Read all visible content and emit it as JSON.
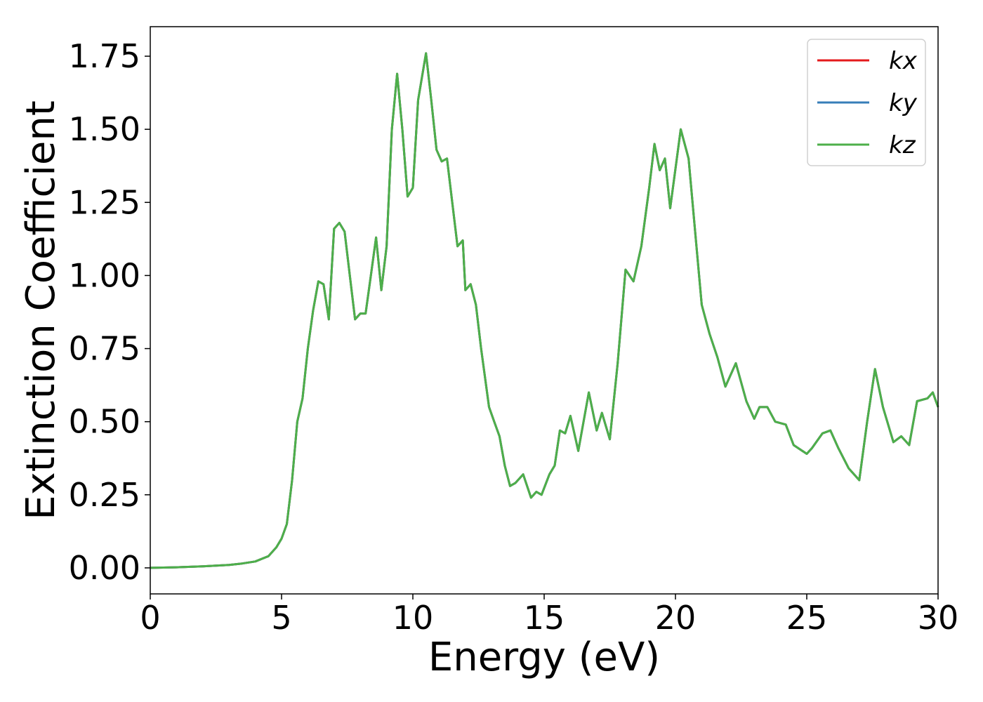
{
  "chart_data": {
    "type": "line",
    "xlabel": "Energy (eV)",
    "ylabel": "Extinction Coefficient",
    "x": [
      0,
      1,
      2,
      3,
      3.5,
      4,
      4.5,
      4.8,
      5.0,
      5.2,
      5.4,
      5.6,
      5.8,
      6.0,
      6.2,
      6.4,
      6.6,
      6.8,
      7.0,
      7.2,
      7.4,
      7.6,
      7.8,
      8.0,
      8.2,
      8.4,
      8.6,
      8.8,
      9.0,
      9.2,
      9.4,
      9.6,
      9.8,
      10.0,
      10.2,
      10.5,
      10.7,
      10.9,
      11.1,
      11.3,
      11.5,
      11.7,
      11.9,
      12.0,
      12.2,
      12.4,
      12.6,
      12.9,
      13.1,
      13.3,
      13.5,
      13.7,
      13.9,
      14.2,
      14.5,
      14.7,
      14.9,
      15.2,
      15.4,
      15.6,
      15.8,
      16.0,
      16.3,
      16.7,
      17.0,
      17.2,
      17.5,
      17.8,
      18.1,
      18.4,
      18.7,
      19.0,
      19.2,
      19.4,
      19.6,
      19.8,
      20.2,
      20.5,
      20.8,
      21.0,
      21.3,
      21.6,
      21.9,
      22.3,
      22.7,
      23.0,
      23.2,
      23.5,
      23.8,
      24.2,
      24.5,
      25.0,
      25.2,
      25.6,
      25.9,
      26.2,
      26.6,
      27.0,
      27.3,
      27.6,
      27.9,
      28.3,
      28.6,
      28.9,
      29.2,
      29.6,
      29.8,
      30.0
    ],
    "series": [
      {
        "name": "kx",
        "color": "#e41a1c",
        "values": [
          0,
          0.002,
          0.005,
          0.01,
          0.015,
          0.022,
          0.04,
          0.07,
          0.1,
          0.15,
          0.3,
          0.5,
          0.58,
          0.75,
          0.88,
          0.98,
          0.97,
          0.85,
          1.16,
          1.18,
          1.15,
          1.0,
          0.85,
          0.87,
          0.87,
          1.0,
          1.13,
          0.95,
          1.1,
          1.5,
          1.69,
          1.5,
          1.27,
          1.3,
          1.6,
          1.76,
          1.6,
          1.43,
          1.39,
          1.4,
          1.25,
          1.1,
          1.12,
          0.95,
          0.97,
          0.9,
          0.75,
          0.55,
          0.5,
          0.45,
          0.35,
          0.28,
          0.29,
          0.32,
          0.24,
          0.26,
          0.25,
          0.32,
          0.35,
          0.47,
          0.46,
          0.52,
          0.4,
          0.6,
          0.47,
          0.53,
          0.44,
          0.7,
          1.02,
          0.98,
          1.1,
          1.3,
          1.45,
          1.36,
          1.4,
          1.23,
          1.5,
          1.4,
          1.1,
          0.9,
          0.8,
          0.72,
          0.62,
          0.7,
          0.57,
          0.51,
          0.55,
          0.55,
          0.5,
          0.49,
          0.42,
          0.39,
          0.41,
          0.46,
          0.47,
          0.41,
          0.34,
          0.3,
          0.5,
          0.68,
          0.55,
          0.43,
          0.45,
          0.42,
          0.57,
          0.58,
          0.6,
          0.55
        ]
      },
      {
        "name": "ky",
        "color": "#377eb8",
        "values": [
          0,
          0.002,
          0.005,
          0.01,
          0.015,
          0.022,
          0.04,
          0.07,
          0.1,
          0.15,
          0.3,
          0.5,
          0.58,
          0.75,
          0.88,
          0.98,
          0.97,
          0.85,
          1.16,
          1.18,
          1.15,
          1.0,
          0.85,
          0.87,
          0.87,
          1.0,
          1.13,
          0.95,
          1.1,
          1.5,
          1.69,
          1.5,
          1.27,
          1.3,
          1.6,
          1.76,
          1.6,
          1.43,
          1.39,
          1.4,
          1.25,
          1.1,
          1.12,
          0.95,
          0.97,
          0.9,
          0.75,
          0.55,
          0.5,
          0.45,
          0.35,
          0.28,
          0.29,
          0.32,
          0.24,
          0.26,
          0.25,
          0.32,
          0.35,
          0.47,
          0.46,
          0.52,
          0.4,
          0.6,
          0.47,
          0.53,
          0.44,
          0.7,
          1.02,
          0.98,
          1.1,
          1.3,
          1.45,
          1.36,
          1.4,
          1.23,
          1.5,
          1.4,
          1.1,
          0.9,
          0.8,
          0.72,
          0.62,
          0.7,
          0.57,
          0.51,
          0.55,
          0.55,
          0.5,
          0.49,
          0.42,
          0.39,
          0.41,
          0.46,
          0.47,
          0.41,
          0.34,
          0.3,
          0.5,
          0.68,
          0.55,
          0.43,
          0.45,
          0.42,
          0.57,
          0.58,
          0.6,
          0.55
        ]
      },
      {
        "name": "kz",
        "color": "#4daf4a",
        "values": [
          0,
          0.002,
          0.005,
          0.01,
          0.015,
          0.022,
          0.04,
          0.07,
          0.1,
          0.15,
          0.3,
          0.5,
          0.58,
          0.75,
          0.88,
          0.98,
          0.97,
          0.85,
          1.16,
          1.18,
          1.15,
          1.0,
          0.85,
          0.87,
          0.87,
          1.0,
          1.13,
          0.95,
          1.1,
          1.5,
          1.69,
          1.5,
          1.27,
          1.3,
          1.6,
          1.76,
          1.6,
          1.43,
          1.39,
          1.4,
          1.25,
          1.1,
          1.12,
          0.95,
          0.97,
          0.9,
          0.75,
          0.55,
          0.5,
          0.45,
          0.35,
          0.28,
          0.29,
          0.32,
          0.24,
          0.26,
          0.25,
          0.32,
          0.35,
          0.47,
          0.46,
          0.52,
          0.4,
          0.6,
          0.47,
          0.53,
          0.44,
          0.7,
          1.02,
          0.98,
          1.1,
          1.3,
          1.45,
          1.36,
          1.4,
          1.23,
          1.5,
          1.4,
          1.1,
          0.9,
          0.8,
          0.72,
          0.62,
          0.7,
          0.57,
          0.51,
          0.55,
          0.55,
          0.5,
          0.49,
          0.42,
          0.39,
          0.41,
          0.46,
          0.47,
          0.41,
          0.34,
          0.3,
          0.5,
          0.68,
          0.55,
          0.43,
          0.45,
          0.42,
          0.57,
          0.58,
          0.6,
          0.55
        ]
      }
    ],
    "xlim": [
      0,
      30
    ],
    "xticks": [
      0,
      5,
      10,
      15,
      20,
      25,
      30
    ],
    "ylim": [
      -0.089,
      1.851
    ],
    "yticks": [
      {
        "value": 0,
        "label": "0.00"
      },
      {
        "value": 0.25,
        "label": "0.25"
      },
      {
        "value": 0.5,
        "label": "0.50"
      },
      {
        "value": 0.75,
        "label": "0.75"
      },
      {
        "value": 1,
        "label": "1.00"
      },
      {
        "value": 1.25,
        "label": "1.25"
      },
      {
        "value": 1.5,
        "label": "1.50"
      },
      {
        "value": 1.75,
        "label": "1.75"
      }
    ],
    "legend": "upper right",
    "grid": false
  }
}
